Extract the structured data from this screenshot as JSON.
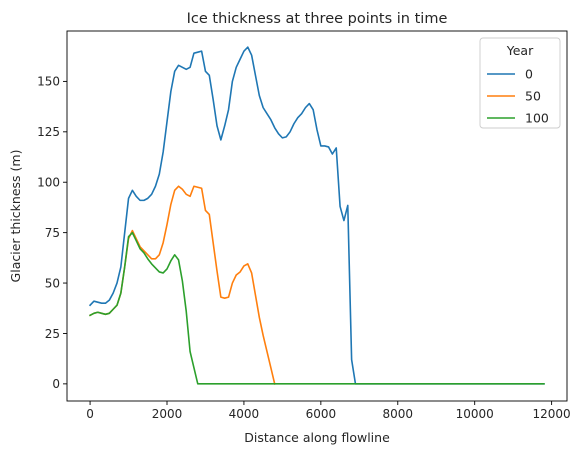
{
  "chart_data": {
    "type": "line",
    "title": "Ice thickness at three points in time",
    "xlabel": "Distance along flowline",
    "ylabel": "Glacier thickness (m)",
    "xlim": [
      -600,
      12400
    ],
    "ylim": [
      -8.5,
      175
    ],
    "xticks": [
      0,
      2000,
      4000,
      6000,
      8000,
      10000,
      12000
    ],
    "yticks": [
      0,
      25,
      50,
      75,
      100,
      125,
      150
    ],
    "grid": false,
    "legend": {
      "title": "Year",
      "placement": "top-right"
    },
    "series": [
      {
        "name": "0",
        "color": "#1f77b4",
        "x": [
          0,
          100,
          200,
          300,
          400,
          500,
          600,
          700,
          800,
          900,
          1000,
          1100,
          1200,
          1300,
          1400,
          1500,
          1600,
          1700,
          1800,
          1900,
          2000,
          2100,
          2200,
          2300,
          2400,
          2500,
          2600,
          2700,
          2800,
          2900,
          3000,
          3100,
          3200,
          3300,
          3400,
          3500,
          3600,
          3700,
          3800,
          3900,
          4000,
          4100,
          4200,
          4300,
          4400,
          4500,
          4600,
          4700,
          4800,
          4900,
          5000,
          5100,
          5200,
          5300,
          5400,
          5500,
          5600,
          5700,
          5800,
          5900,
          6000,
          6100,
          6200,
          6300,
          6400,
          6500,
          6600,
          6700,
          6800,
          6900,
          7000,
          8000,
          9000,
          10000,
          11000,
          11800
        ],
        "y": [
          39,
          41,
          40.5,
          40,
          40,
          41.5,
          45,
          50,
          58,
          75,
          92,
          96,
          93,
          91,
          91,
          92,
          94,
          98,
          104,
          115,
          130,
          145,
          155,
          158,
          157,
          156,
          157,
          164,
          164.5,
          165,
          155,
          153,
          141,
          128,
          121,
          128,
          136,
          150,
          157,
          161,
          165,
          167,
          163,
          153,
          143,
          137,
          134,
          131,
          127,
          124,
          122,
          122.5,
          125,
          129,
          132,
          134,
          137,
          139,
          136,
          126,
          118,
          118,
          117.5,
          114,
          117,
          88,
          81,
          88.5,
          12,
          0,
          0,
          0,
          0,
          0,
          0,
          0
        ]
      },
      {
        "name": "50",
        "color": "#ff7f0e",
        "x": [
          0,
          100,
          200,
          300,
          400,
          500,
          600,
          700,
          800,
          900,
          1000,
          1100,
          1200,
          1300,
          1400,
          1500,
          1600,
          1700,
          1800,
          1900,
          2000,
          2100,
          2200,
          2300,
          2400,
          2500,
          2600,
          2700,
          2800,
          2900,
          3000,
          3100,
          3200,
          3300,
          3400,
          3500,
          3600,
          3700,
          3800,
          3900,
          4000,
          4100,
          4200,
          4300,
          4400,
          4500,
          4600,
          4700,
          4800
        ],
        "y": [
          34,
          35,
          35.5,
          35,
          34.5,
          35,
          37,
          39,
          45,
          58,
          72,
          76,
          72,
          68,
          66,
          64,
          62,
          62,
          64,
          70,
          79,
          89,
          96,
          98,
          96.5,
          94,
          93,
          98,
          97.5,
          97,
          86,
          84,
          70,
          56,
          43,
          42.5,
          43,
          50,
          54,
          55.5,
          58.5,
          59.5,
          55,
          44,
          33,
          24,
          16,
          8,
          0
        ]
      },
      {
        "name": "100",
        "color": "#2ca02c",
        "x": [
          0,
          100,
          200,
          300,
          400,
          500,
          600,
          700,
          800,
          900,
          1000,
          1100,
          1200,
          1300,
          1400,
          1500,
          1600,
          1700,
          1800,
          1900,
          2000,
          2100,
          2200,
          2300,
          2400,
          2500,
          2600,
          2700,
          2800,
          3000,
          4000,
          5000,
          6000,
          7000,
          8000,
          9000,
          10000,
          11000,
          11800
        ],
        "y": [
          34,
          35,
          35.5,
          35,
          34.5,
          35,
          37,
          39,
          45,
          58,
          73,
          75,
          71,
          67,
          65,
          62,
          59.5,
          57.5,
          55.5,
          55,
          57,
          61,
          64,
          61.5,
          51,
          36,
          16,
          8,
          0,
          0,
          0,
          0,
          0,
          0,
          0,
          0,
          0,
          0,
          0
        ]
      }
    ]
  }
}
